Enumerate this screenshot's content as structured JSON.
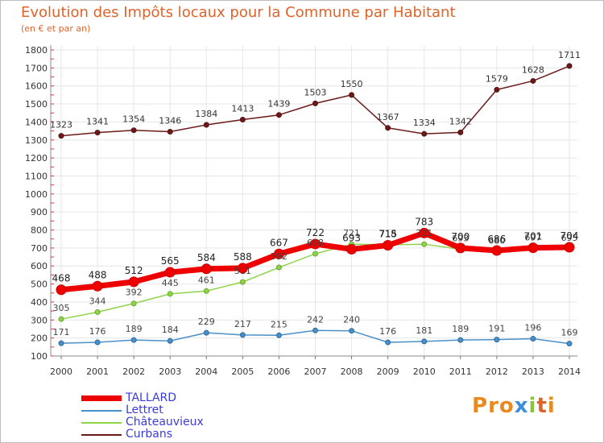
{
  "title": "Evolution des Impôts locaux pour la Commune par Habitant",
  "subtitle": "(en € et par an)",
  "logo": {
    "text": "Proxiti",
    "letters": [
      "P",
      "r",
      "o",
      "x",
      "i",
      "t",
      "i"
    ],
    "colors": [
      "#e98a1f",
      "#e98a1f",
      "#e98a1f",
      "#3c8fd8",
      "#8ac43f",
      "#e0632a",
      "#e98a1f"
    ]
  },
  "chart_data": {
    "type": "line",
    "categories": [
      "2000",
      "2001",
      "2002",
      "2003",
      "2004",
      "2005",
      "2006",
      "2007",
      "2008",
      "2009",
      "2010",
      "2011",
      "2012",
      "2013",
      "2014"
    ],
    "ylim": [
      100,
      1800
    ],
    "yticks": [
      100,
      200,
      300,
      400,
      500,
      600,
      700,
      800,
      900,
      1000,
      1100,
      1200,
      1300,
      1400,
      1500,
      1600,
      1700,
      1800
    ],
    "grid": true,
    "legend_position": "bottom-left",
    "series": [
      {
        "name": "Curbans",
        "color": "#6b1a1a",
        "labels_shown": true,
        "values": [
          1323,
          1341,
          1354,
          1346,
          1384,
          1413,
          1439,
          1503,
          1550,
          1367,
          1334,
          1342,
          1579,
          1628,
          1711
        ]
      },
      {
        "name": "Lettret",
        "color": "#4a90c8",
        "labels_shown": true,
        "values": [
          171,
          176,
          189,
          184,
          229,
          217,
          215,
          242,
          240,
          176,
          181,
          189,
          191,
          196,
          169
        ]
      },
      {
        "name": "Châteauvieux",
        "color": "#8ed44a",
        "labels_shown": true,
        "values": [
          305,
          344,
          392,
          445,
          461,
          511,
          592,
          668,
          721,
          718,
          721,
          693,
          680,
          697,
          695
        ]
      },
      {
        "name": "TALLARD",
        "color": "#ee0000",
        "labels_shown": true,
        "values": [
          468,
          488,
          512,
          565,
          584,
          588,
          667,
          722,
          693,
          715,
          783,
          700,
          686,
          701,
          704
        ]
      }
    ]
  }
}
